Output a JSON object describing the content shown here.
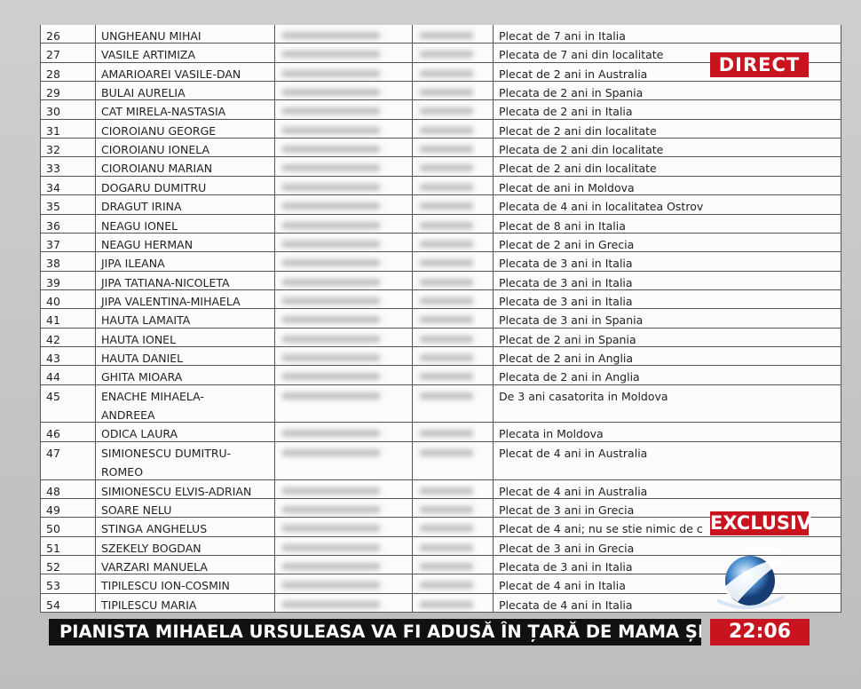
{
  "table": {
    "rows": [
      {
        "no": 26,
        "name": "UNGHEANU MIHAI",
        "note": "Plecat de 7 ani in Italia"
      },
      {
        "no": 27,
        "name": "VASILE ARTIMIZA",
        "note": "Plecata de 7 ani din localitate"
      },
      {
        "no": 28,
        "name": "AMARIOAREI VASILE-DAN",
        "note": "Plecat de 2 ani in Australia"
      },
      {
        "no": 29,
        "name": "BULAI AURELIA",
        "note": "Plecata de 2 ani in Spania"
      },
      {
        "no": 30,
        "name": "CAT MIRELA-NASTASIA",
        "note": "Plecata de 2 ani in Italia"
      },
      {
        "no": 31,
        "name": "CIOROIANU GEORGE",
        "note": "Plecat de 2 ani din localitate"
      },
      {
        "no": 32,
        "name": "CIOROIANU IONELA",
        "note": "Plecata de 2 ani din localitate"
      },
      {
        "no": 33,
        "name": "CIOROIANU MARIAN",
        "note": "Plecat de 2 ani din localitate"
      },
      {
        "no": 34,
        "name": "DOGARU DUMITRU",
        "note": "Plecat de  ani in Moldova"
      },
      {
        "no": 35,
        "name": "DRAGUT IRINA",
        "note": "Plecata de 4 ani in localitatea Ostrov"
      },
      {
        "no": 36,
        "name": "NEAGU IONEL",
        "note": "Plecat de 8 ani in Italia"
      },
      {
        "no": 37,
        "name": "NEAGU HERMAN",
        "note": "Plecat de 2 ani in Grecia"
      },
      {
        "no": 38,
        "name": "JIPA ILEANA",
        "note": "Plecata de 3 ani in Italia"
      },
      {
        "no": 39,
        "name": "JIPA TATIANA-NICOLETA",
        "note": "Plecata de 3 ani in Italia"
      },
      {
        "no": 40,
        "name": "JIPA VALENTINA-MIHAELA",
        "note": "Plecata de 3 ani in Italia"
      },
      {
        "no": 41,
        "name": "HAUTA LAMAITA",
        "note": "Plecata de 3 ani in Spania"
      },
      {
        "no": 42,
        "name": "HAUTA IONEL",
        "note": "Plecat de 2 ani in Spania"
      },
      {
        "no": 43,
        "name": "HAUTA DANIEL",
        "note": "Plecat de 2 ani in Anglia"
      },
      {
        "no": 44,
        "name": "GHITA MIOARA",
        "note": "Plecata de 2 ani in Anglia"
      },
      {
        "no": 45,
        "name": [
          "ENACHE MIHAELA-",
          "ANDREEA"
        ],
        "note": "De 3 ani casatorita in Moldova"
      },
      {
        "no": 46,
        "name": "ODICA LAURA",
        "note": "Plecata in Moldova"
      },
      {
        "no": 47,
        "name": [
          "SIMIONESCU DUMITRU-",
          "ROMEO"
        ],
        "note": "Plecat de 4 ani in Australia"
      },
      {
        "no": 48,
        "name": "SIMIONESCU ELVIS-ADRIAN",
        "note": "Plecat de 4 ani in Australia"
      },
      {
        "no": 49,
        "name": "SOARE NELU",
        "note": "Plecat de 3 ani in Grecia"
      },
      {
        "no": 50,
        "name": "STINGA ANGHELUS",
        "note": "Plecat de 4 ani; nu se stie nimic de c"
      },
      {
        "no": 51,
        "name": "SZEKELY BOGDAN",
        "note": "Plecat de 3 ani in Grecia"
      },
      {
        "no": 52,
        "name": "VARZARI MANUELA",
        "note": "Plecata de 3 ani in Italia"
      },
      {
        "no": 53,
        "name": "TIPILESCU ION-COSMIN",
        "note": "Plecat de 4 ani in Italia"
      },
      {
        "no": 54,
        "name": "TIPILESCU MARIA",
        "note": "Plecata de 4 ani in Italia"
      }
    ]
  },
  "overlays": {
    "live": "DIRECT",
    "exclusive": "EXCLUSIV"
  },
  "ticker": {
    "headline": "PIANISTA MIHAELA URSULEASA VA FI ADUSĂ ÎN ȚARĂ DE MAMA ȘI SORA SA",
    "time": "22:06"
  }
}
